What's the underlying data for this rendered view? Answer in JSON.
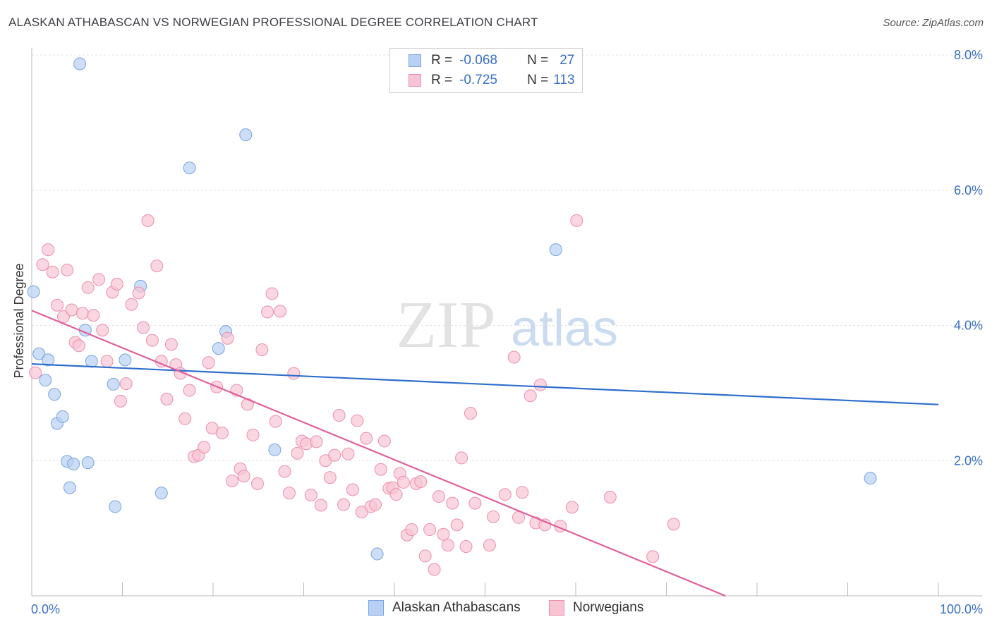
{
  "title": "ALASKAN ATHABASCAN VS NORWEGIAN PROFESSIONAL DEGREE CORRELATION CHART",
  "source": "Source: ZipAtlas.com",
  "watermark": {
    "zip": "ZIP",
    "atlas": "atlas"
  },
  "legend": {
    "r_label": "R =",
    "n_label": "N =",
    "rows": [
      {
        "r": "-0.068",
        "n": "27",
        "fill": "#b8d0f4",
        "stroke": "#7ba3e0"
      },
      {
        "r": "-0.725",
        "n": "113",
        "fill": "#f8c4d4",
        "stroke": "#eb8fad"
      }
    ]
  },
  "bottom_legend": [
    {
      "label": "Alaskan Athabascans",
      "fill": "#b8d0f4",
      "stroke": "#7ba3e0"
    },
    {
      "label": "Norwegians",
      "fill": "#f8c4d4",
      "stroke": "#eb8fad"
    }
  ],
  "chart_data": {
    "type": "scatter",
    "title": "ALASKAN ATHABASCAN VS NORWEGIAN PROFESSIONAL DEGREE CORRELATION CHART",
    "xlabel": "",
    "ylabel": "Professional Degree",
    "xlim": [
      0,
      100
    ],
    "ylim": [
      0,
      8.0
    ],
    "x_tick_labels": [
      "0.0%",
      "100.0%"
    ],
    "y_ticks": [
      2.0,
      4.0,
      6.0,
      8.0
    ],
    "y_tick_labels": [
      "2.0%",
      "4.0%",
      "6.0%",
      "8.0%"
    ],
    "grid": true,
    "series": [
      {
        "name": "Alaskan Athabascans",
        "color": "#7ba3e0",
        "fill": "#b8d0f4",
        "trend": {
          "x": [
            0,
            100
          ],
          "y": [
            3.43,
            2.83
          ],
          "color": "#2f6fcc"
        },
        "points": [
          [
            0.2,
            4.5
          ],
          [
            0.8,
            3.58
          ],
          [
            1.8,
            3.49
          ],
          [
            1.5,
            3.19
          ],
          [
            2.5,
            2.98
          ],
          [
            2.8,
            2.55
          ],
          [
            3.4,
            2.65
          ],
          [
            3.9,
            1.99
          ],
          [
            4.2,
            1.6
          ],
          [
            4.6,
            1.95
          ],
          [
            5.3,
            7.87
          ],
          [
            5.9,
            3.93
          ],
          [
            6.2,
            1.97
          ],
          [
            6.6,
            3.47
          ],
          [
            9.0,
            3.13
          ],
          [
            9.2,
            1.32
          ],
          [
            10.3,
            3.49
          ],
          [
            12.0,
            4.58
          ],
          [
            14.3,
            1.52
          ],
          [
            17.4,
            6.33
          ],
          [
            20.6,
            3.66
          ],
          [
            21.4,
            3.91
          ],
          [
            23.6,
            6.82
          ],
          [
            26.8,
            2.16
          ],
          [
            38.1,
            0.62
          ],
          [
            57.8,
            5.12
          ],
          [
            92.5,
            1.74
          ]
        ]
      },
      {
        "name": "Norwegians",
        "color": "#eb8fad",
        "fill": "#f8c4d4",
        "trend": {
          "x": [
            0,
            76.5
          ],
          "y": [
            4.22,
            0.0
          ],
          "color": "#e0609a"
        },
        "points": [
          [
            0.4,
            3.3
          ],
          [
            1.2,
            4.9
          ],
          [
            1.8,
            5.12
          ],
          [
            2.3,
            4.79
          ],
          [
            2.8,
            4.3
          ],
          [
            3.5,
            4.13
          ],
          [
            3.9,
            4.82
          ],
          [
            4.4,
            4.23
          ],
          [
            4.8,
            3.75
          ],
          [
            5.2,
            3.7
          ],
          [
            5.6,
            4.18
          ],
          [
            6.2,
            4.56
          ],
          [
            6.8,
            4.15
          ],
          [
            7.4,
            4.68
          ],
          [
            7.8,
            3.93
          ],
          [
            8.3,
            3.47
          ],
          [
            8.9,
            4.49
          ],
          [
            9.4,
            4.61
          ],
          [
            9.8,
            2.88
          ],
          [
            10.4,
            3.14
          ],
          [
            11.0,
            4.31
          ],
          [
            11.8,
            4.48
          ],
          [
            12.3,
            3.97
          ],
          [
            12.8,
            5.55
          ],
          [
            13.3,
            3.78
          ],
          [
            13.8,
            4.88
          ],
          [
            14.3,
            3.47
          ],
          [
            14.9,
            2.91
          ],
          [
            15.4,
            3.72
          ],
          [
            15.9,
            3.42
          ],
          [
            16.4,
            3.29
          ],
          [
            16.9,
            2.62
          ],
          [
            17.4,
            3.04
          ],
          [
            17.9,
            2.06
          ],
          [
            18.4,
            2.08
          ],
          [
            19.0,
            2.2
          ],
          [
            19.5,
            3.45
          ],
          [
            19.9,
            2.48
          ],
          [
            20.4,
            3.09
          ],
          [
            21.0,
            2.41
          ],
          [
            21.6,
            3.81
          ],
          [
            22.1,
            1.7
          ],
          [
            22.6,
            3.04
          ],
          [
            23.0,
            1.88
          ],
          [
            23.4,
            1.77
          ],
          [
            23.8,
            2.83
          ],
          [
            24.4,
            2.38
          ],
          [
            24.9,
            1.66
          ],
          [
            25.4,
            3.64
          ],
          [
            26.0,
            4.2
          ],
          [
            26.5,
            4.47
          ],
          [
            26.9,
            2.58
          ],
          [
            27.4,
            4.21
          ],
          [
            27.9,
            1.84
          ],
          [
            28.4,
            1.52
          ],
          [
            28.9,
            3.29
          ],
          [
            29.3,
            2.11
          ],
          [
            29.8,
            2.29
          ],
          [
            30.3,
            2.25
          ],
          [
            30.8,
            1.49
          ],
          [
            31.4,
            2.28
          ],
          [
            31.9,
            1.34
          ],
          [
            32.4,
            2.0
          ],
          [
            32.9,
            1.75
          ],
          [
            33.4,
            2.08
          ],
          [
            33.9,
            2.67
          ],
          [
            34.4,
            1.35
          ],
          [
            34.9,
            2.1
          ],
          [
            35.4,
            1.57
          ],
          [
            35.9,
            2.59
          ],
          [
            36.4,
            1.24
          ],
          [
            36.9,
            2.33
          ],
          [
            37.4,
            1.32
          ],
          [
            37.9,
            1.35
          ],
          [
            38.5,
            1.87
          ],
          [
            38.9,
            2.29
          ],
          [
            39.4,
            1.59
          ],
          [
            39.8,
            1.6
          ],
          [
            40.2,
            1.5
          ],
          [
            40.6,
            1.81
          ],
          [
            41.0,
            1.68
          ],
          [
            41.4,
            0.9
          ],
          [
            41.9,
            0.98
          ],
          [
            42.4,
            1.66
          ],
          [
            42.9,
            1.69
          ],
          [
            43.4,
            0.59
          ],
          [
            43.9,
            0.98
          ],
          [
            44.4,
            0.39
          ],
          [
            44.9,
            1.47
          ],
          [
            45.4,
            0.91
          ],
          [
            45.9,
            0.75
          ],
          [
            46.4,
            1.37
          ],
          [
            46.9,
            1.05
          ],
          [
            47.4,
            2.04
          ],
          [
            47.9,
            0.73
          ],
          [
            48.4,
            2.7
          ],
          [
            48.9,
            1.37
          ],
          [
            50.5,
            0.75
          ],
          [
            50.9,
            1.17
          ],
          [
            52.2,
            1.5
          ],
          [
            53.2,
            3.53
          ],
          [
            53.7,
            1.16
          ],
          [
            54.1,
            1.53
          ],
          [
            55.0,
            2.96
          ],
          [
            55.6,
            1.08
          ],
          [
            56.1,
            3.12
          ],
          [
            56.6,
            1.05
          ],
          [
            58.3,
            1.03
          ],
          [
            59.6,
            1.31
          ],
          [
            60.1,
            5.55
          ],
          [
            63.8,
            1.46
          ],
          [
            68.5,
            0.58
          ],
          [
            70.8,
            1.06
          ]
        ]
      }
    ]
  }
}
